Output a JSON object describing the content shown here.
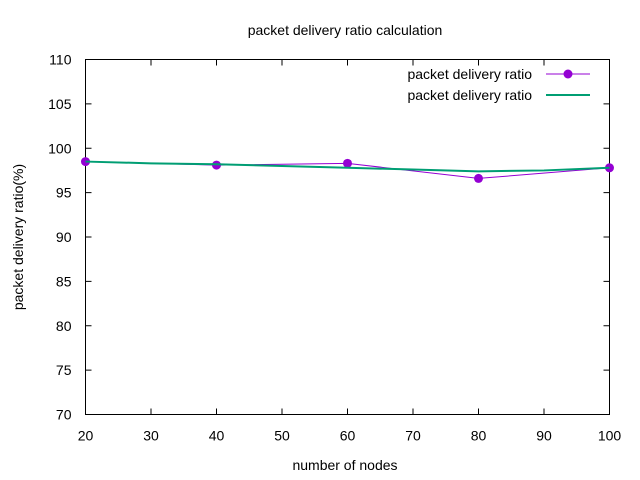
{
  "chart_data": {
    "type": "line",
    "title": "packet delivery ratio calculation",
    "xlabel": "number of nodes",
    "ylabel": "packet delivery ratio(%)",
    "xlim": [
      20,
      100
    ],
    "ylim": [
      70,
      110
    ],
    "x_ticks": [
      20,
      30,
      40,
      50,
      60,
      70,
      80,
      90,
      100
    ],
    "y_ticks": [
      70,
      75,
      80,
      85,
      90,
      95,
      100,
      105,
      110
    ],
    "grid": false,
    "legend_position": "top-right",
    "series": [
      {
        "name": "packet delivery ratio",
        "color": "#9400d3",
        "marker": "circle",
        "x": [
          20,
          40,
          60,
          80,
          100
        ],
        "y": [
          98.5,
          98.1,
          98.3,
          96.6,
          97.8
        ]
      },
      {
        "name": "packet delivery ratio",
        "color": "#009e73",
        "marker": "none",
        "x": [
          20,
          30,
          40,
          50,
          60,
          70,
          80,
          90,
          100
        ],
        "y": [
          98.5,
          98.3,
          98.2,
          98.0,
          97.8,
          97.6,
          97.4,
          97.5,
          97.8
        ]
      }
    ]
  }
}
